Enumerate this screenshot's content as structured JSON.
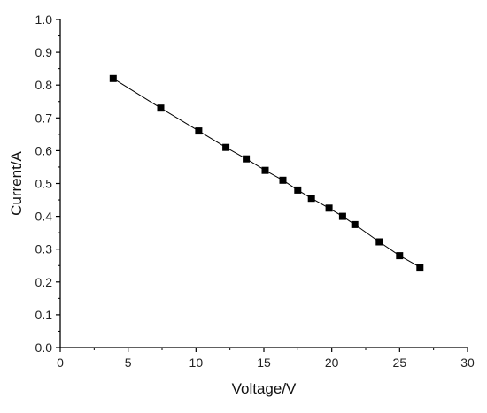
{
  "chart_data": {
    "type": "line",
    "title": "",
    "xlabel": "Voltage/V",
    "ylabel": "Current/A",
    "xlim": [
      0,
      30
    ],
    "ylim": [
      0.0,
      1.0
    ],
    "x_ticks": [
      "0",
      "5",
      "10",
      "15",
      "20",
      "25",
      "30"
    ],
    "y_ticks": [
      "0.0",
      "0.1",
      "0.2",
      "0.3",
      "0.4",
      "0.5",
      "0.6",
      "0.7",
      "0.8",
      "0.9",
      "1.0"
    ],
    "grid": false,
    "legend": "none",
    "marker": "square",
    "line_color": "#000000",
    "marker_color": "#000000",
    "series": [
      {
        "x": [
          3.9,
          7.4,
          10.2,
          12.2,
          13.7,
          15.1,
          16.4,
          17.5,
          18.5,
          19.8,
          20.8,
          21.7,
          23.5,
          25.0,
          26.5
        ],
        "y": [
          0.82,
          0.73,
          0.66,
          0.61,
          0.575,
          0.54,
          0.51,
          0.48,
          0.455,
          0.425,
          0.4,
          0.375,
          0.322,
          0.28,
          0.245
        ]
      }
    ]
  }
}
